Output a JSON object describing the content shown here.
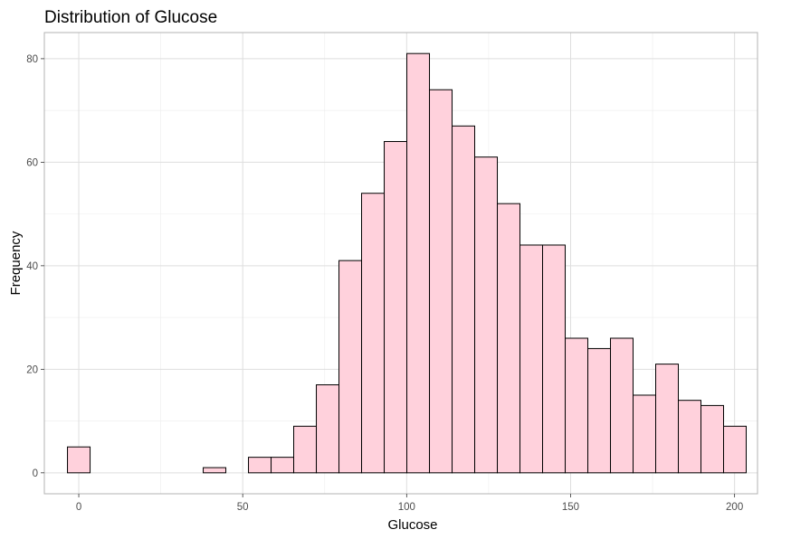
{
  "chart_data": {
    "type": "bar",
    "title": "Distribution of Glucose",
    "xlabel": "Glucose",
    "ylabel": "Frequency",
    "bin_width": 6.9,
    "bins": [
      {
        "center": 0.0,
        "count": 5
      },
      {
        "center": 6.9,
        "count": 0
      },
      {
        "center": 13.8,
        "count": 0
      },
      {
        "center": 20.7,
        "count": 0
      },
      {
        "center": 27.6,
        "count": 0
      },
      {
        "center": 34.5,
        "count": 0
      },
      {
        "center": 41.4,
        "count": 1
      },
      {
        "center": 48.3,
        "count": 0
      },
      {
        "center": 55.2,
        "count": 3
      },
      {
        "center": 62.1,
        "count": 3
      },
      {
        "center": 69.0,
        "count": 9
      },
      {
        "center": 75.9,
        "count": 17
      },
      {
        "center": 82.8,
        "count": 41
      },
      {
        "center": 89.7,
        "count": 54
      },
      {
        "center": 96.6,
        "count": 64
      },
      {
        "center": 103.5,
        "count": 81
      },
      {
        "center": 110.4,
        "count": 74
      },
      {
        "center": 117.3,
        "count": 67
      },
      {
        "center": 124.2,
        "count": 61
      },
      {
        "center": 131.1,
        "count": 52
      },
      {
        "center": 138.0,
        "count": 44
      },
      {
        "center": 144.9,
        "count": 44
      },
      {
        "center": 151.8,
        "count": 26
      },
      {
        "center": 158.7,
        "count": 24
      },
      {
        "center": 165.6,
        "count": 26
      },
      {
        "center": 172.5,
        "count": 15
      },
      {
        "center": 179.4,
        "count": 21
      },
      {
        "center": 186.3,
        "count": 14
      },
      {
        "center": 193.2,
        "count": 13
      },
      {
        "center": 200.1,
        "count": 9
      }
    ],
    "xlim": [
      -10.5,
      207.0
    ],
    "ylim": [
      -4.05,
      85.05
    ],
    "x_ticks": [
      0,
      50,
      100,
      150,
      200
    ],
    "y_ticks": [
      0,
      20,
      40,
      60,
      80
    ],
    "grid": true,
    "legend": "none",
    "colors": {
      "bar_fill": "#ffd1dc",
      "bar_outline": "#000000"
    }
  }
}
